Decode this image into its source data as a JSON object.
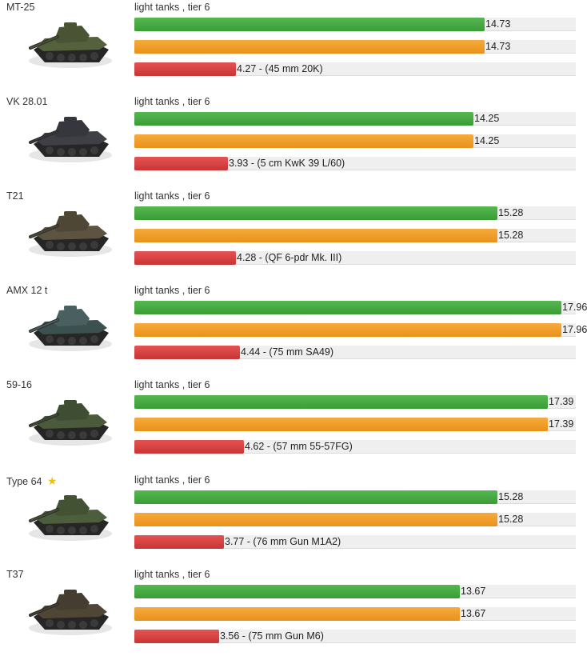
{
  "scale_max": 18.56,
  "colors": {
    "first_bar": "#3ea53a",
    "second_bar": "#f0a030",
    "third_bar": "#d24040",
    "track": "#efefef"
  },
  "tanks": [
    {
      "name": "MT-25",
      "star": false,
      "class_text": "light tanks , tier 6",
      "bar1": 14.73,
      "bar2": 14.73,
      "bar1_label": "14.73",
      "bar2_label": "14.73",
      "bar3": 4.27,
      "bar3_label": "4.27 - (45 mm 20K)",
      "hull": "#55603c",
      "turret": "#4a5434"
    },
    {
      "name": "VK 28.01",
      "star": false,
      "class_text": "light tanks , tier 6",
      "bar1": 14.25,
      "bar2": 14.25,
      "bar1_label": "14.25",
      "bar2_label": "14.25",
      "bar3": 3.93,
      "bar3_label": "3.93 - (5 cm KwK 39 L/60)",
      "hull": "#3e4046",
      "turret": "#35373c"
    },
    {
      "name": "T21",
      "star": false,
      "class_text": "light tanks , tier 6",
      "bar1": 15.28,
      "bar2": 15.28,
      "bar1_label": "15.28",
      "bar2_label": "15.28",
      "bar3": 4.28,
      "bar3_label": "4.28 - (QF 6-pdr Mk. III)",
      "hull": "#5c5440",
      "turret": "#4e4736"
    },
    {
      "name": "AMX 12 t",
      "star": false,
      "class_text": "light tanks , tier 6",
      "bar1": 17.96,
      "bar2": 17.96,
      "bar1_label": "17.96",
      "bar2_label": "17.96",
      "bar3": 4.44,
      "bar3_label": "4.44 - (75 mm SA49)",
      "hull": "#3d5050",
      "turret": "#4a6060"
    },
    {
      "name": "59-16",
      "star": false,
      "class_text": "light tanks , tier 6",
      "bar1": 17.39,
      "bar2": 17.39,
      "bar1_label": "17.39",
      "bar2_label": "17.39",
      "bar3": 4.62,
      "bar3_label": "4.62 - (57 mm 55-57FG)",
      "hull": "#4a5a3a",
      "turret": "#3f4e32"
    },
    {
      "name": "Type 64",
      "star": true,
      "class_text": "light tanks , tier 6",
      "bar1": 15.28,
      "bar2": 15.28,
      "bar1_label": "15.28",
      "bar2_label": "15.28",
      "bar3": 3.77,
      "bar3_label": "3.77 - (76 mm Gun M1A2)",
      "hull": "#4c5e3c",
      "turret": "#425233"
    },
    {
      "name": "T37",
      "star": false,
      "class_text": "light tanks , tier 6",
      "bar1": 13.67,
      "bar2": 13.67,
      "bar1_label": "13.67",
      "bar2_label": "13.67",
      "bar3": 3.56,
      "bar3_label": "3.56 - (75 mm Gun M6)",
      "hull": "#4f4636",
      "turret": "#453d2f"
    }
  ]
}
